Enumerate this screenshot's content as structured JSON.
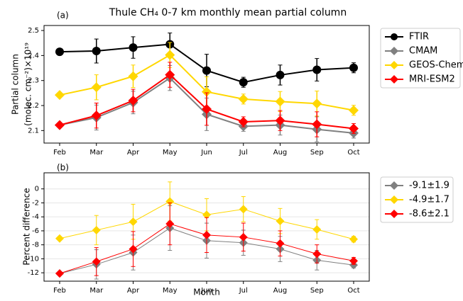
{
  "chart_data": [
    {
      "type": "line",
      "title": "Thule CH₄ 0-7 km monthly mean partial column",
      "panel_label": "(a)",
      "ylabel": [
        "Partial column",
        "(molec. cm⁻²)×10¹⁹"
      ],
      "categories": [
        "Feb",
        "Mar",
        "Apr",
        "May",
        "Jun",
        "Jul",
        "Aug",
        "Sep",
        "Oct"
      ],
      "ylim": [
        2.05,
        2.52
      ],
      "yticks": [
        2.1,
        2.2,
        2.3,
        2.4,
        2.5
      ],
      "grid": false,
      "series": [
        {
          "name": "FTIR",
          "color": "#000000",
          "marker": "circle",
          "values": [
            2.415,
            2.418,
            2.432,
            2.445,
            2.34,
            2.293,
            2.322,
            2.343,
            2.351
          ],
          "errors": [
            0,
            0.048,
            0.043,
            0.045,
            0.065,
            0.02,
            0.04,
            0.045,
            0.02
          ]
        },
        {
          "name": "CMAM",
          "color": "#808080",
          "marker": "diamond",
          "values": [
            2.122,
            2.152,
            2.212,
            2.31,
            2.165,
            2.117,
            2.122,
            2.105,
            2.09
          ],
          "errors": [
            0,
            0.05,
            0.045,
            0.05,
            0.065,
            0.02,
            0.04,
            0.05,
            0.02
          ]
        },
        {
          "name": "GEOS-Chem",
          "color": "#ffd700",
          "marker": "diamond",
          "values": [
            2.242,
            2.273,
            2.317,
            2.402,
            2.255,
            2.226,
            2.216,
            2.208,
            2.181
          ],
          "errors": [
            0,
            0.05,
            0.045,
            0.05,
            0.06,
            0.02,
            0.04,
            0.05,
            0.02
          ]
        },
        {
          "name": "MRI-ESM2",
          "color": "#ff0000",
          "marker": "diamond",
          "values": [
            2.122,
            2.16,
            2.22,
            2.323,
            2.186,
            2.135,
            2.14,
            2.125,
            2.108
          ],
          "errors": [
            0,
            0.05,
            0.045,
            0.05,
            0.065,
            0.02,
            0.04,
            0.05,
            0.02
          ]
        }
      ]
    },
    {
      "type": "line",
      "panel_label": "(b)",
      "xlabel": "Month",
      "ylabel": [
        "Percent difference"
      ],
      "categories": [
        "Feb",
        "Mar",
        "Apr",
        "May",
        "Jun",
        "Jul",
        "Aug",
        "Sep",
        "Oct"
      ],
      "ylim": [
        -13.2,
        2.3
      ],
      "yticks": [
        -12,
        -10,
        -8,
        -6,
        -4,
        -2,
        0
      ],
      "grid": true,
      "series": [
        {
          "name": "-9.1±1.9",
          "color": "#808080",
          "marker": "diamond",
          "values": [
            -12.1,
            -10.8,
            -9.1,
            -5.6,
            -7.4,
            -7.7,
            -8.6,
            -10.2,
            -10.9
          ],
          "errors": [
            0,
            2.1,
            2.5,
            3.2,
            2.5,
            1.8,
            1.8,
            1.4,
            0.4
          ]
        },
        {
          "name": "-4.9±1.7",
          "color": "#ffd700",
          "marker": "diamond",
          "values": [
            -7.1,
            -5.9,
            -4.7,
            -1.8,
            -3.7,
            -2.9,
            -4.6,
            -5.8,
            -7.2
          ],
          "errors": [
            0,
            2.1,
            2.5,
            2.8,
            2.3,
            1.8,
            1.8,
            1.4,
            0.4
          ]
        },
        {
          "name": "-8.6±2.1",
          "color": "#ff0000",
          "marker": "diamond",
          "values": [
            -12.1,
            -10.4,
            -8.6,
            -5.0,
            -6.6,
            -6.9,
            -7.8,
            -9.3,
            -10.3
          ],
          "errors": [
            0,
            2,
            2.5,
            3,
            2.5,
            2,
            1.8,
            1.3,
            0.5
          ]
        }
      ]
    }
  ]
}
